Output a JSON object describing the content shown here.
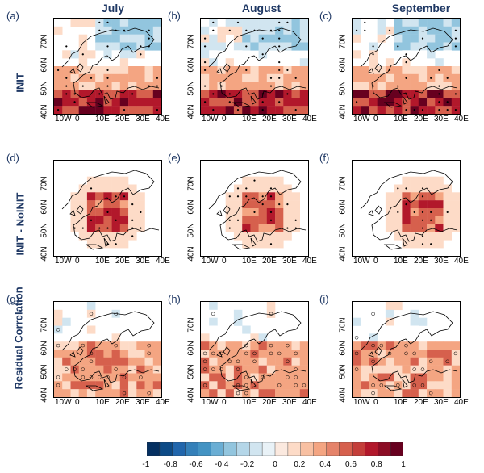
{
  "columns": [
    "July",
    "August",
    "September"
  ],
  "rows": [
    "INIT",
    "INIT - NoINIT",
    "Residual Correlation"
  ],
  "panel_letters": [
    "(a)",
    "(b)",
    "(c)",
    "(d)",
    "(e)",
    "(f)",
    "(g)",
    "(h)",
    "(i)"
  ],
  "lat_labels": [
    "70N",
    "60N",
    "50N",
    "40N"
  ],
  "lon_labels": [
    "10W",
    "0",
    "10E",
    "20E",
    "30E",
    "40E"
  ],
  "colorbar": {
    "ticks": [
      "-1",
      "-0.8",
      "-0.6",
      "-0.4",
      "-0.2",
      "0",
      "0.2",
      "0.4",
      "0.6",
      "0.8",
      "1"
    ],
    "colors": [
      "#053061",
      "#2166ac",
      "#4393c3",
      "#92c5de",
      "#d1e5f0",
      "#ffffff",
      "#fddbc7",
      "#f4a582",
      "#d6604d",
      "#b2182b",
      "#67001f"
    ]
  }
}
